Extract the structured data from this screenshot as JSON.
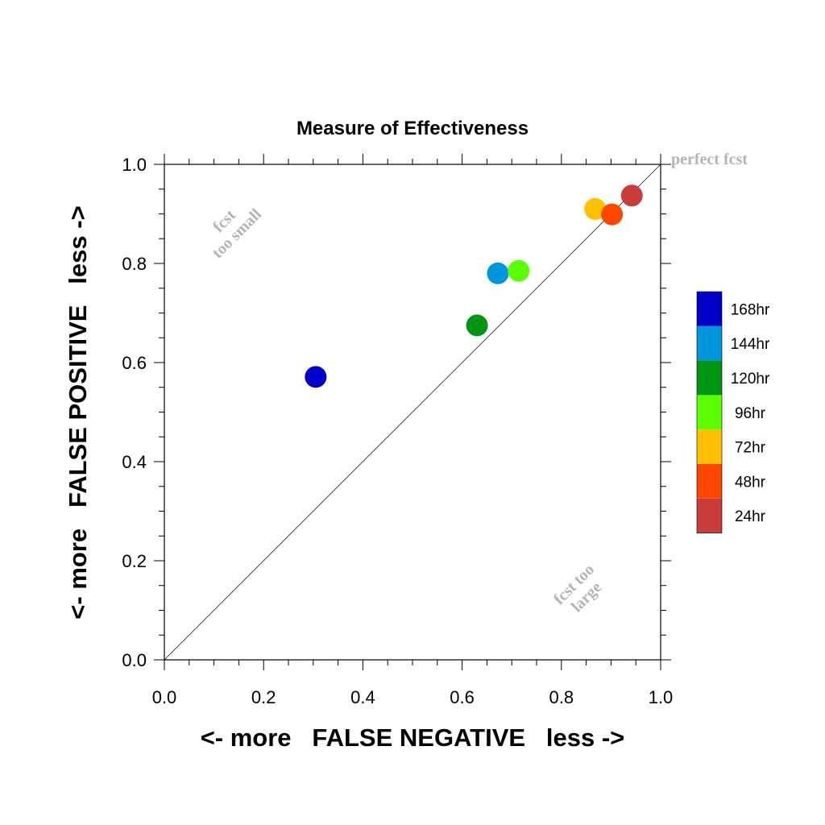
{
  "chart_data": {
    "type": "scatter",
    "title": "Measure of Effectiveness",
    "xlabel": "<- more   FALSE NEGATIVE   less ->",
    "ylabel": "<- more   FALSE POSITIVE   less ->",
    "xlim": [
      0.0,
      1.0
    ],
    "ylim": [
      0.0,
      1.0
    ],
    "xticks": [
      "0.0",
      "0.2",
      "0.4",
      "0.6",
      "0.8",
      "1.0"
    ],
    "yticks": [
      "0.0",
      "0.2",
      "0.4",
      "0.6",
      "0.8",
      "1.0"
    ],
    "grid": false,
    "legend_position": "right",
    "diagonal_reference": true,
    "annotations": {
      "perfect": "perfect fcst",
      "too_small_1": "fcst",
      "too_small_2": "too small",
      "too_large_1": "fcst too",
      "too_large_2": "large"
    },
    "series": [
      {
        "name": "168hr",
        "color": "#0000c8",
        "x": 0.305,
        "y": 0.571
      },
      {
        "name": "144hr",
        "color": "#0096dc",
        "x": 0.672,
        "y": 0.78
      },
      {
        "name": "120hr",
        "color": "#009614",
        "x": 0.63,
        "y": 0.675
      },
      {
        "name": "96hr",
        "color": "#5aff00",
        "x": 0.714,
        "y": 0.785
      },
      {
        "name": "72hr",
        "color": "#ffc000",
        "x": 0.868,
        "y": 0.91
      },
      {
        "name": "48hr",
        "color": "#ff4600",
        "x": 0.902,
        "y": 0.899
      },
      {
        "name": "24hr",
        "color": "#c83c3c",
        "x": 0.942,
        "y": 0.937
      }
    ]
  }
}
